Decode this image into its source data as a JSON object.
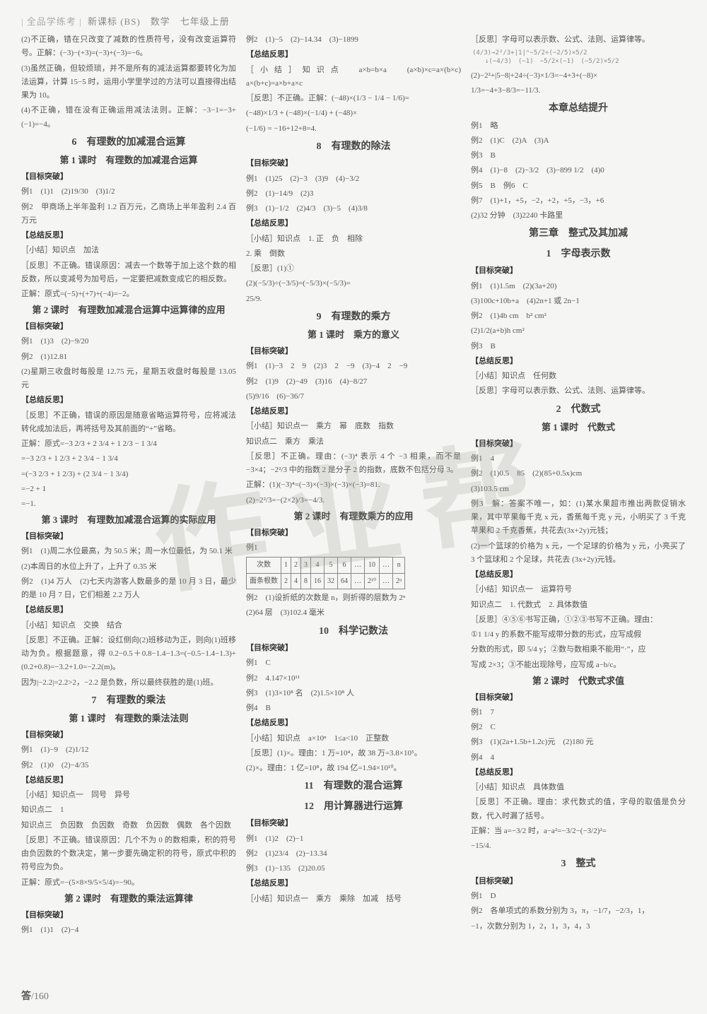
{
  "header": {
    "brand": "| 全品学练考 |",
    "subtitle": "新课标 (BS)　数学　七年级上册"
  },
  "footer": {
    "label": "答",
    "page": "/160"
  },
  "watermark": "作业帮",
  "col1": {
    "p1": "(2)不正确，错在只改变了减数的性质符号，没有改变运算符号。正解：(−3)−(+3)=(−3)+(−3)=−6。",
    "p2": "(3)虽然正确，但较烦琐，并不是所有的减法运算都要转化为加法运算，计算 15−5 时，运用小学里学过的方法可以直接得出结果为 10。",
    "p3": "(4)不正确，错在没有正确运用减法法则。正解：−3−1=−3+(−1)=−4。",
    "t1": "6　有理数的加减混合运算",
    "t1a": "第 1 课时　有理数的加减混合运算",
    "mbtp": "【目标突破】",
    "e1": "例1　(1)1　(2)19/30　(3)1/2",
    "e2": "例2　甲商场上半年盈利 1.2 百万元，乙商场上半年盈利 2.4 百万元",
    "zjfs": "【总结反思】",
    "xj1": "［小结］知识点　加法",
    "fs1": "［反思］不正确。错误原因：减去一个数等于加上这个数的相反数，所以变减号为加号后，一定要把减数变成它的相反数。",
    "zj1": "正解：原式=(−5)+(+7)+(−4)=−2。",
    "t2": "第 2 课时　有理数加减混合运算中运算律的应用",
    "e21": "例1　(1)3　(2)−9/20",
    "e22": "例2　(1)12.81",
    "e22b": "(2)星期三收盘时每股是 12.75 元，星期五收盘时每股是 13.05 元",
    "fs2": "［反思］不正确，错误的原因是随意省略运算符号，应将减法转化成加法后，再将括号及其前面的“+”省略。",
    "zj2a": "正解：原式=−3 2/3 + 2 3/4 + 1 2/3 − 1 3/4",
    "zj2b": "=−3 2/3 + 1 2/3 + 2 3/4 − 1 3/4",
    "zj2c": "=(−3 2/3 + 1 2/3) + (2 3/4 − 1 3/4)",
    "zj2d": "=−2 + 1",
    "zj2e": "=−1.",
    "t3": "第 3 课时　有理数加减混合运算的实际应用",
    "e31": "例1　(1)周二水位最高，为 50.5 米；周一水位最低，为 50.1 米",
    "e31b": "(2)本周日的水位上升了，上升了 0.35 米",
    "e32": "例2　(1)4 万人　(2)七天内游客人数最多的是 10 月 3 日，最少的是 10 月 7 日，它们相差 2.2 万人",
    "xj3": "［小结］知识点　交换　结合",
    "fs3": "［反思］不正确。正解：设红侧向(2)班移动为正，则向(1)班移动为负。根据题意，得 0.2−0.5＋0.8−1.4−1.3=(−0.5−1.4−1.3)+(0.2+0.8)=−3.2+1.0=−2.2(m)。",
    "fs3b": "因为|−2.2|=2.2>2，−2.2 是负数，所以最终获胜的是(1)班。",
    "t4": "7　有理数的乘法",
    "t4a": "第 1 课时　有理数的乘法法则",
    "e41": "例1　(1)−9　(2)1/12",
    "e42": "例2　(1)0　(2)−4/35",
    "xj4a": "［小结］知识点一　同号　异号",
    "xj4b": "知识点二　1",
    "xj4c": "知识点三　负因数　负因数　奇数　负因数　偶数　各个因数",
    "fs4": "［反思］不正确。错误原因：几个不为 0 的数相乘，积的符号由负因数的个数决定，第一步要先确定积的符号，原式中积的符号应为负。",
    "zj4": "正解：原式=−(5×8×9/5×5/4)=−90。",
    "t5": "第 2 课时　有理数的乘法运算律",
    "e51": "例1　(1)1　(2)−4"
  },
  "col2": {
    "e2": "例2　(1)−5　(2)−14.34　(3)−1899",
    "zjfs": "【总结反思】",
    "xj": "［小结］知识点　a×b=b×a　(a×b)×c=a×(b×c)　a×(b+c)=a×b+a×c",
    "fs": "［反思］不正确。正解：(−48)×(1/3 − 1/4 − 1/6)=",
    "fsb": "(−48)×1/3 + (−48)×(−1/4) + (−48)×",
    "fsc": "(−1/6) = −16+12+8=4.",
    "t8": "8　有理数的除法",
    "mbtp": "【目标突破】",
    "e81": "例1　(1)25　(2)−3　(3)9　(4)−3/2",
    "e82": "例2　(1)−14/9　(2)3",
    "e83": "例3　(1)−1/2　(2)4/3　(3)−5　(4)3/8",
    "xj8a": "［小结］知识点　1. 正　负　相除",
    "xj8b": "2. 乘　倒数",
    "fs8": "［反思］(1)①",
    "fs8b": "(2)(−5/3)÷(−3/5)=(−5/3)×(−5/3)=",
    "fs8c": "25/9.",
    "t9": "9　有理数的乘方",
    "t9a": "第 1 课时　乘方的意义",
    "e91": "例1　(1)−3　2　9　(2)3　2　−9　(3)−4　2　−9",
    "e92": "例2　(1)9　(2)−49　(3)16　(4)−8/27",
    "e92b": "(5)9/16　(6)−36/7",
    "xj9a": "［小结］知识点一　乘方　幂　底数　指数",
    "xj9b": "知识点二　乘方　乘法",
    "fs9": "［反思］不正确。理由：(−3)⁴ 表示 4 个 −3 相乘，而不是 −3×4；−2²/3 中的指数 2 是分子 2 的指数，底数不包括分母 3。",
    "zj9a": "正解：(1)(−3)⁴=(−3)×(−3)×(−3)×(−3)=81.",
    "zj9b": "(2)−2²/3=−(2×2)/3=−4/3.",
    "t9b": "第 2 课时　有理数乘方的应用",
    "e9b1": "例1",
    "tableHead": [
      "次数",
      "1",
      "2",
      "3",
      "4",
      "5",
      "6",
      "…",
      "10",
      "…",
      "n"
    ],
    "tableRow": [
      "面条根数",
      "2",
      "4",
      "8",
      "16",
      "32",
      "64",
      "…",
      "2¹⁰",
      "…",
      "2ⁿ"
    ],
    "e9b2": "例2　(1)设折纸的次数是 n，则折得的层数为 2ⁿ",
    "e9b2b": "(2)64 层　(3)102.4 毫米",
    "t10": "10　科学记数法",
    "e101": "例1　C",
    "e102": "例2　4.147×10¹¹",
    "e103": "例3　(1)3×10⁸ 名　(2)1.5×10⁸ 人",
    "e104": "例4　B",
    "xj10": "［小结］知识点　a×10ⁿ　1≤a<10　正整数",
    "fs10": "［反思］(1)×。理由：1 万=10⁴，故 38 万=3.8×10⁵。",
    "fs10b": "(2)×。理由：1 亿=10⁸，故 194 亿=1.94×10¹⁰。",
    "t11": "11　有理数的混合运算",
    "t12": "12　用计算器进行运算",
    "e111": "例1　(1)2　(2)−1",
    "e112": "例2　(1)23/4　(2)−13.34",
    "e113": "例3　(1)−135　(2)20.05",
    "xj11": "［小结］知识点一　乘方　乘除　加减　括号"
  },
  "col3": {
    "fs": "［反思］字母可以表示数、公式、法则、运算律等。",
    "diagram": "(4/3)→2²/3+|1|ⁿ−5/2÷(−2/5)×5/2\n　　↓(−4/3)　(−1)　−5/2×(−1)　(−5/2)×5/2",
    "l2": "(2)−2²+|5−8|+24÷(−3)×1/3=−4+3+(−8)×",
    "l2b": "1/3=−4+3−8/3=−11/3.",
    "tz": "本章总结提升",
    "e1": "例1　略",
    "e2": "例2　(1)C　(2)A　(3)A",
    "e3": "例3　B",
    "e4": "例4　(1)−8　(2)−3/2　(3)−899 1/2　(4)0",
    "e5": "例5　B　例6　C",
    "e7": "例7　(1)+1，+5，−2，+2，+5，−3，+6",
    "e7b": "(2)32 分钟　(3)2240 卡路里",
    "ch3": "第三章　整式及其加减",
    "ch3s1": "1　字母表示数",
    "mbtp": "【目标突破】",
    "e31": "例1　(1)1.5m　(2)(3a+20)",
    "e31b": "(3)100c+10b+a　(4)2n+1 或 2n−1",
    "e32": "例2　(1)4b cm　b² cm²",
    "e32b": "(2)1/2(a+b)h cm²",
    "e33": "例3　B",
    "zjfs": "【总结反思】",
    "xj": "［小结］知识点　任何数",
    "ch3s2": "2　代数式",
    "ch3s2a": "第 1 课时　代数式",
    "e21": "例1　4",
    "e22": "例2　(1)0.5　85　(2)(85+0.5x)cm",
    "e22b": "(3)103.5 cm",
    "e23": "例3　解：答案不唯一，如：(1)某水果超市推出两款促销水果，其中苹果每千克 x 元，香蕉每千克 y 元，小明买了 3 千克苹果和 2 千克香蕉，共花去(3x+2y)元钱；",
    "e23b": "(2)一个篮球的价格为 x 元，一个足球的价格为 y 元，小亮买了 3 个篮球和 2 个足球，共花去 (3x+2y)元钱。",
    "xj2a": "［小结］知识点一　运算符号",
    "xj2b": "知识点二　1. 代数式　2. 具体数值",
    "fs2": "［反思］④⑤⑥书写正确，①②③书写不正确。理由：",
    "fs2b": "①1 1/4 y 的系数不能写成带分数的形式，应写成假",
    "fs2c": "分数的形式，即 5/4 y；②数与数相乘不能用“·”，应",
    "fs2d": "写成 2×3；③不能出现除号，应写成 a−b/c。",
    "ch3s2b": "第 2 课时　代数式求值",
    "e2b1": "例1　7",
    "e2b2": "例2　C",
    "e2b3": "例3　(1)(2a+1.5b+1.2c)元　(2)180 元",
    "e2b4": "例4　4",
    "xj2c": "［小结］知识点　具体数值",
    "fs2e": "［反思］不正确。理由：求代数式的值，字母的取值是负分数，代入时漏了括号。",
    "zj2": "正解：当 a=−3/2 时，a−a²=−3/2−(−3/2)²=",
    "zj2b": "−15/4.",
    "ch3s3": "3　整式",
    "e31x": "例1　D",
    "e32x": "例2　各单项式的系数分别为 3，π，−1/7，−2/3，1，",
    "e32xb": "−1，次数分别为 1，2，1，3，4，3"
  }
}
